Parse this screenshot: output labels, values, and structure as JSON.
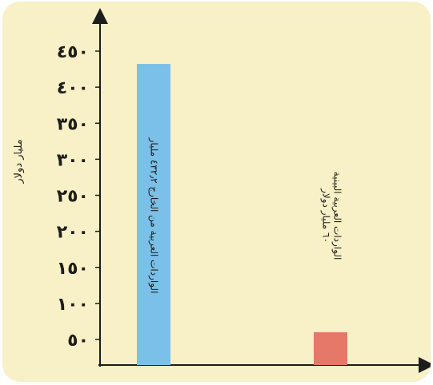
{
  "chart_data": {
    "type": "bar",
    "title": "",
    "xlabel": "",
    "ylabel": "مليار دولار",
    "ylim": [
      0,
      500
    ],
    "yticks": [
      50,
      100,
      150,
      200,
      250,
      300,
      350,
      400,
      450
    ],
    "ytick_labels": [
      "٥٠",
      "١٠٠",
      "١٥٠",
      "٢٠٠",
      "٢٥٠",
      "٣٠٠",
      "٣٥٠",
      "٤٠٠",
      "٤٥٠"
    ],
    "categories": [
      "الواردات العربية من الخارج",
      "الواردات العربية البينية"
    ],
    "values": [
      432.2,
      60
    ],
    "bar_labels": [
      [
        "الواردات العربية من الخارج ٤٣٢٫٢ مليار"
      ],
      [
        "الواردات العربية البينية",
        "٦٠ مليار دولار"
      ]
    ],
    "colors": [
      "#7ac0e8",
      "#e6786a"
    ],
    "grid": false,
    "legend": "none"
  }
}
